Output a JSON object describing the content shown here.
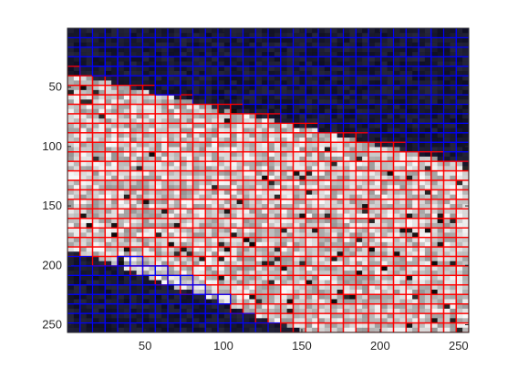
{
  "figure": {
    "background": "#ffffff",
    "axes": {
      "x_range": [
        1,
        256
      ],
      "y_range": [
        1,
        256
      ],
      "y_direction": "reverse",
      "x_ticks": [
        50,
        100,
        150,
        200,
        250
      ],
      "y_ticks": [
        50,
        100,
        150,
        200,
        250
      ],
      "x_tick_labels": [
        "50",
        "100",
        "150",
        "200",
        "250"
      ],
      "y_tick_labels": [
        "50",
        "100",
        "150",
        "200",
        "250"
      ],
      "tick_color": "#262626"
    },
    "image": {
      "description_key": "grayscale-photo-with-dark-background",
      "grid_cell_size": 8,
      "grid_cols": 32,
      "grid_rows": 32,
      "colors": {
        "background_cell": "#0a0a1a",
        "blue_grid": "#0000ff",
        "red_grid": "#ff0000",
        "bright_region": "#c8c8c8",
        "mid_region": "#909090"
      }
    }
  }
}
